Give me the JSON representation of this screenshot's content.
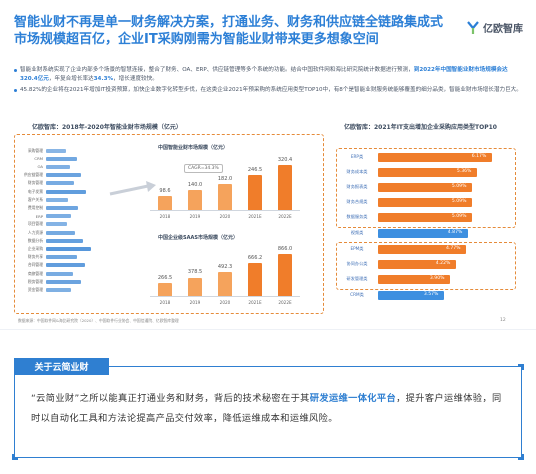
{
  "headline": "智能业财不再是单一财务解决方案，打通业务、财务和供应链全链路集成式市场规模超百亿，企业IT采购刚需为智能业财带来更多想象空间",
  "brand": {
    "name": "亿欧智库"
  },
  "bullets": [
    {
      "pre": "智能业财系统实现了企业内部多个场景的智慧连接，整合了财务、OA、ERP、供应链管理等多个系统的功能。结合中国软件网和海比研究院统计数据进行预测，",
      "highlight": "到2022年中国智能业财市场规模会达320.4亿元",
      "mid": "，年复合增长率达",
      "highlight2": "34.3%",
      "post": "，增长速度较快。"
    },
    {
      "pre": "45.82%的企业将在2021年增加IT投资预算，加快企业数字化转型步伐，在这类企业2021年预采购的系统应用类型TOP10中，有8个是智能业财服务统能够覆盖的细分品类，智能业财市场增长潜力巨大。",
      "highlight": "",
      "mid": "",
      "highlight2": "",
      "post": ""
    }
  ],
  "left_panel": {
    "title": "亿欧智库：2018年-2020年智能业财市场规模（亿元）",
    "side_bars": [
      {
        "label": "采购管理",
        "value": 0.35
      },
      {
        "label": "CRM",
        "value": 0.55
      },
      {
        "label": "OA",
        "value": 0.42
      },
      {
        "label": "供应链管理",
        "value": 0.62
      },
      {
        "label": "财务管理",
        "value": 0.5
      },
      {
        "label": "电子发票",
        "value": 0.72
      },
      {
        "label": "客户关系",
        "value": 0.4
      },
      {
        "label": "费用控制",
        "value": 0.58
      },
      {
        "label": "ERP",
        "value": 0.45
      },
      {
        "label": "项目管理",
        "value": 0.38
      },
      {
        "label": "人力资源",
        "value": 0.52
      },
      {
        "label": "数据分析",
        "value": 0.66
      },
      {
        "label": "企业采购",
        "value": 0.8
      },
      {
        "label": "财务共享",
        "value": 0.56
      },
      {
        "label": "合同管理",
        "value": 0.7
      },
      {
        "label": "商旅管理",
        "value": 0.48
      },
      {
        "label": "税务管理",
        "value": 0.62
      },
      {
        "label": "资金管理",
        "value": 0.44
      }
    ],
    "legend": "",
    "chart1": {
      "title": "中国智能业财市场规模（亿元）",
      "callout": "CAGR=34.3%",
      "categories": [
        "2018",
        "2019",
        "2020",
        "2021E",
        "2022E"
      ],
      "values": [
        98.6,
        140.0,
        182.0,
        246.5,
        320.4
      ],
      "ymax": 340
    },
    "chart2": {
      "title": "中国企业级SAAS市场规模（亿元）",
      "categories": [
        "2018",
        "2019",
        "2020",
        "2021E",
        "2022E"
      ],
      "values": [
        266.5,
        378.5,
        492.3,
        666.2,
        866.0
      ],
      "ymax": 900
    }
  },
  "right_panel": {
    "title": "亿欧智库：2021年IT支出增加企业采购应用类型TOP10",
    "items": [
      {
        "label": "ERP类",
        "value": 6.17,
        "group": "covered"
      },
      {
        "label": "财务成本类",
        "value": 5.36,
        "group": "covered"
      },
      {
        "label": "财务报表类",
        "value": 5.09,
        "group": "covered"
      },
      {
        "label": "财务合规类",
        "value": 5.09,
        "group": "covered"
      },
      {
        "label": "数据服务类",
        "value": 5.09,
        "group": "covered"
      },
      {
        "label": "视频类",
        "value": 4.87,
        "group": "other"
      },
      {
        "label": "EPM类",
        "value": 4.77,
        "group": "covered"
      },
      {
        "label": "协同办公类",
        "value": 4.22,
        "group": "covered"
      },
      {
        "label": "研发管理类",
        "value": 3.9,
        "group": "covered"
      },
      {
        "label": "CRM类",
        "value": 3.57,
        "group": "other"
      }
    ],
    "value_suffix": "%",
    "colors": {
      "covered": "#f07d2a",
      "other": "#3d8fe0"
    }
  },
  "source": "数据来源：中国软件网&海比研究院（2020）、中国软件行业协会、中国信通院、亿欧智库整理",
  "page_no": "12",
  "about": {
    "tag": "关于云简业财",
    "text_pre": "“云简业财”之所以能真正打通业务和财务，背后的技术秘密在于其",
    "text_highlight": "研发运维一体化平台",
    "text_post": "，提升客户运维体验，同时以自动化工具和方法论提高产品交付效率，降低运维成本和运维风险。"
  },
  "colors": {
    "blue": "#2c7fd6",
    "orange": "#f07d2a",
    "orange_light": "#f5a35c",
    "side_bar": "#4a8fd8"
  }
}
